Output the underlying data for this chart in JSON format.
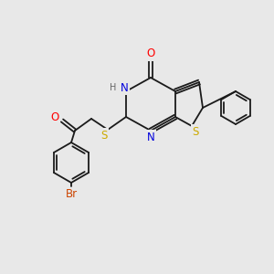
{
  "background_color": "#e8e8e8",
  "bond_color": "#1a1a1a",
  "atom_colors": {
    "O": "#ff0000",
    "N": "#0000dd",
    "S": "#ccaa00",
    "Br": "#cc4400",
    "C": "#1a1a1a",
    "H": "#666666"
  },
  "figsize": [
    3.0,
    3.0
  ],
  "dpi": 100
}
